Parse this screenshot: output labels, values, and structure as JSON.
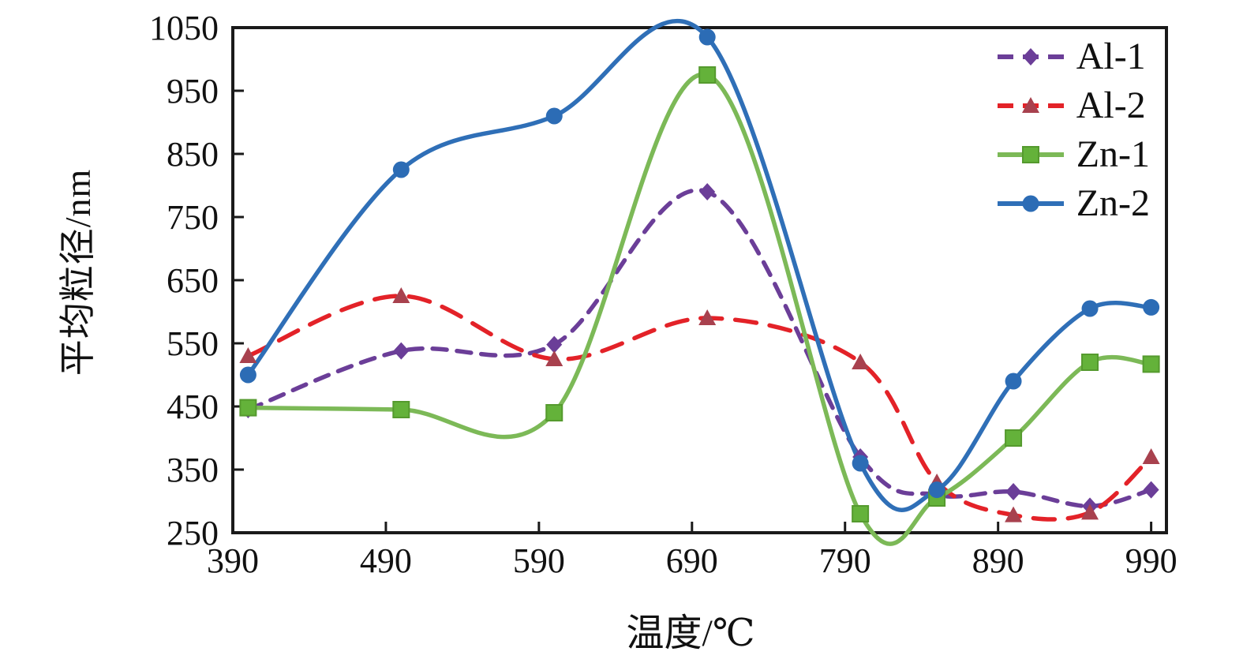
{
  "figure": {
    "background": "#ffffff",
    "axis_color": "#1a1a1a"
  },
  "chart_data": {
    "type": "line",
    "title": "",
    "xlabel": "温度/℃",
    "ylabel": "平均粒径/nm",
    "xlim": [
      390,
      1000
    ],
    "ylim": [
      250,
      1050
    ],
    "x_ticks": [
      390,
      490,
      590,
      690,
      790,
      890,
      990
    ],
    "y_ticks": [
      250,
      350,
      450,
      550,
      650,
      750,
      850,
      950,
      1050
    ],
    "grid": false,
    "legend_position": "top-right-inside",
    "x": [
      400,
      500,
      600,
      700,
      800,
      850,
      900,
      950,
      990
    ],
    "series": [
      {
        "name": "Al-1",
        "line_color": "#6B3E98",
        "line_style": "dashed",
        "dash": "18 13",
        "marker": "diamond",
        "marker_color": "#6B3E98",
        "values": [
          445,
          538,
          548,
          790,
          370,
          310,
          315,
          292,
          318
        ]
      },
      {
        "name": "Al-2",
        "line_color": "#E32228",
        "line_style": "dashed",
        "dash": "27 17",
        "marker": "triangle",
        "marker_color": "#A8414E",
        "values": [
          530,
          625,
          525,
          590,
          520,
          330,
          278,
          282,
          370
        ]
      },
      {
        "name": "Zn-1",
        "line_color": "#7CB957",
        "line_style": "solid",
        "dash": "",
        "marker": "square",
        "marker_color": "#64B23A",
        "values": [
          448,
          445,
          440,
          975,
          280,
          305,
          400,
          520,
          517
        ]
      },
      {
        "name": "Zn-2",
        "line_color": "#2F6FB7",
        "line_style": "solid",
        "dash": "",
        "marker": "circle",
        "marker_color": "#2C6CB5",
        "values": [
          500,
          825,
          910,
          1035,
          360,
          318,
          490,
          605,
          607
        ]
      }
    ]
  }
}
